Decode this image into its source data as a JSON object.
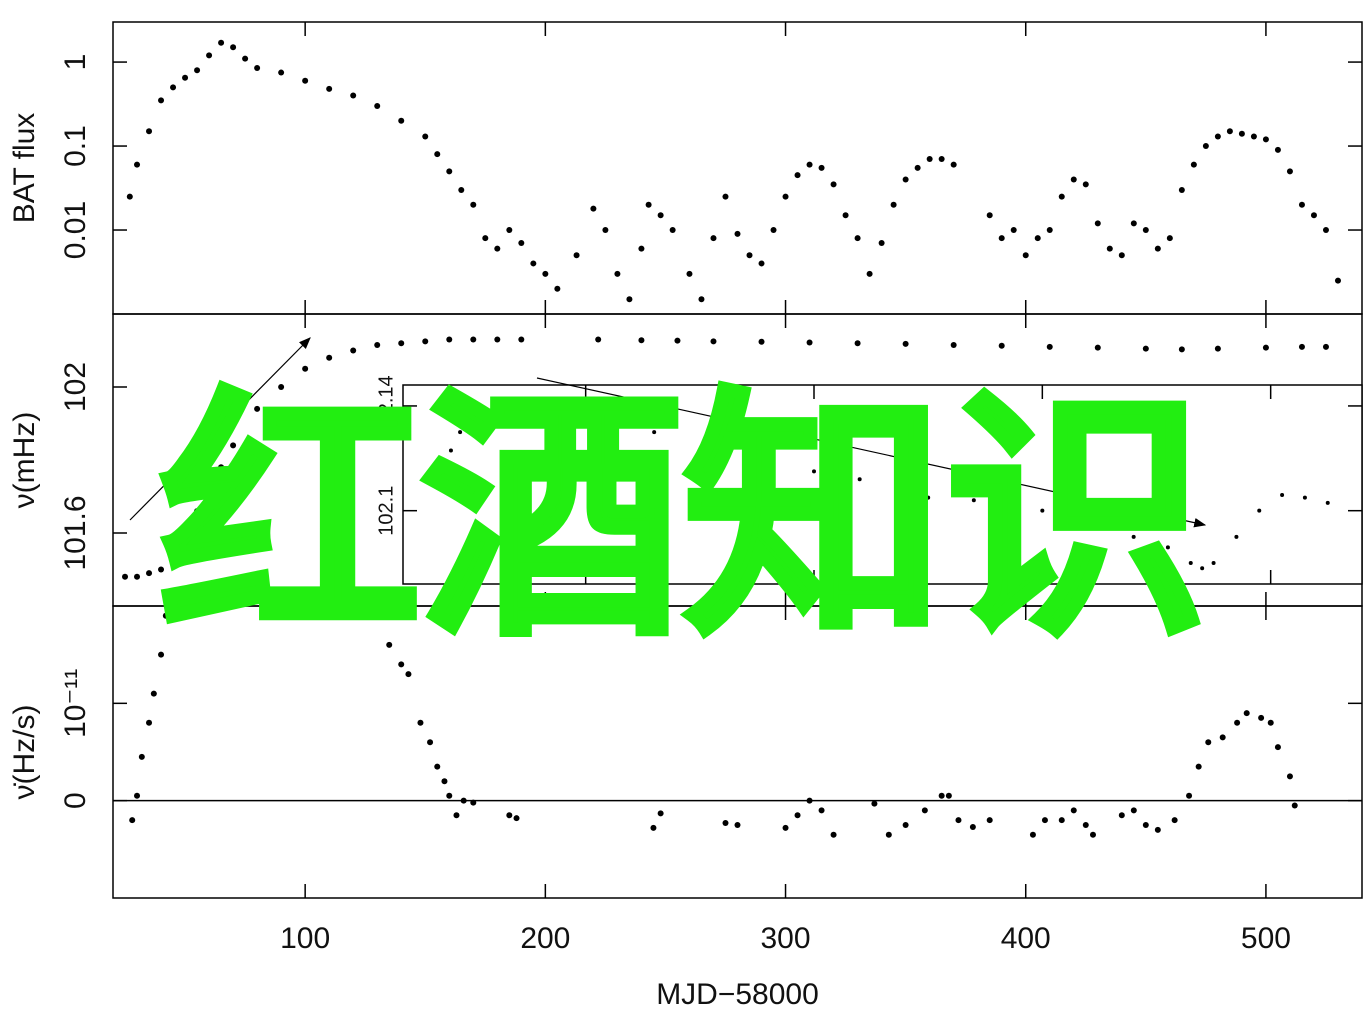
{
  "chart_data": [
    {
      "type": "scatter",
      "ylabel": "BAT flux",
      "ylog": true,
      "color": "#000000",
      "xlim": [
        20,
        540
      ],
      "ylim": [
        0.001,
        3
      ],
      "yticks": [
        0.01,
        0.1,
        1
      ],
      "x": [
        27,
        30,
        35,
        40,
        45,
        50,
        55,
        60,
        65,
        70,
        75,
        80,
        90,
        100,
        110,
        120,
        130,
        140,
        150,
        155,
        160,
        165,
        170,
        175,
        180,
        185,
        190,
        195,
        200,
        205,
        213,
        220,
        225,
        230,
        235,
        240,
        243,
        248,
        253,
        260,
        265,
        270,
        275,
        280,
        285,
        290,
        295,
        300,
        305,
        310,
        315,
        320,
        325,
        330,
        335,
        340,
        345,
        350,
        355,
        360,
        365,
        370,
        385,
        390,
        395,
        400,
        405,
        410,
        415,
        420,
        425,
        430,
        435,
        440,
        445,
        450,
        455,
        460,
        465,
        470,
        475,
        480,
        485,
        490,
        495,
        500,
        505,
        510,
        515,
        520,
        525,
        530
      ],
      "values": [
        0.025,
        0.06,
        0.15,
        0.35,
        0.5,
        0.65,
        0.8,
        1.2,
        1.7,
        1.5,
        1.1,
        0.85,
        0.75,
        0.6,
        0.48,
        0.4,
        0.3,
        0.2,
        0.13,
        0.08,
        0.05,
        0.03,
        0.02,
        0.008,
        0.006,
        0.01,
        0.007,
        0.004,
        0.003,
        0.002,
        0.005,
        0.018,
        0.01,
        0.003,
        0.0015,
        0.006,
        0.02,
        0.015,
        0.01,
        0.003,
        0.0015,
        0.008,
        0.025,
        0.009,
        0.005,
        0.004,
        0.01,
        0.025,
        0.045,
        0.06,
        0.055,
        0.035,
        0.015,
        0.008,
        0.003,
        0.007,
        0.02,
        0.04,
        0.055,
        0.07,
        0.07,
        0.06,
        0.015,
        0.008,
        0.01,
        0.005,
        0.008,
        0.01,
        0.025,
        0.04,
        0.035,
        0.012,
        0.006,
        0.005,
        0.012,
        0.01,
        0.006,
        0.008,
        0.03,
        0.06,
        0.1,
        0.13,
        0.15,
        0.14,
        0.13,
        0.12,
        0.09,
        0.05,
        0.02,
        0.015,
        0.01,
        0.0025
      ]
    },
    {
      "type": "scatter",
      "ylabel": "ν(mHz)",
      "color": "#000000",
      "xlim": [
        20,
        540
      ],
      "ylim": [
        101.4,
        102.2
      ],
      "yticks": [
        101.6,
        102
      ],
      "x": [
        25,
        30,
        35,
        40,
        45,
        50,
        55,
        60,
        65,
        70,
        80,
        90,
        100,
        110,
        120,
        130,
        140,
        150,
        160,
        170,
        180,
        190,
        222,
        240,
        255,
        270,
        290,
        310,
        330,
        350,
        370,
        390,
        410,
        430,
        450,
        465,
        480,
        500,
        515,
        525
      ],
      "values": [
        101.48,
        101.48,
        101.49,
        101.5,
        101.55,
        101.6,
        101.66,
        101.72,
        101.78,
        101.84,
        101.94,
        102.0,
        102.05,
        102.08,
        102.1,
        102.115,
        102.12,
        102.125,
        102.13,
        102.13,
        102.13,
        102.13,
        102.13,
        102.128,
        102.127,
        102.125,
        102.124,
        102.122,
        102.12,
        102.118,
        102.115,
        102.113,
        102.11,
        102.108,
        102.105,
        102.103,
        102.105,
        102.108,
        102.11,
        102.11
      ]
    },
    {
      "type": "scatter",
      "ylabel": "ν̇(Hz/s)",
      "xlabel": "MJD−58000",
      "zero_line": true,
      "color": "#000000",
      "xlim": [
        20,
        540
      ],
      "xticks": [
        100,
        200,
        300,
        400,
        500
      ],
      "ylim": [
        -1e-11,
        2e-11
      ],
      "yticks": [
        0,
        {
          "value": 1e-11,
          "label": "10⁻¹¹"
        }
      ],
      "x": [
        28,
        30,
        32,
        35,
        37,
        40,
        42,
        130,
        135,
        140,
        143,
        148,
        152,
        155,
        158,
        160,
        163,
        166,
        170,
        185,
        188,
        245,
        248,
        275,
        280,
        300,
        305,
        310,
        315,
        320,
        337,
        343,
        350,
        358,
        365,
        368,
        372,
        378,
        385,
        403,
        408,
        415,
        420,
        425,
        428,
        440,
        445,
        450,
        455,
        462,
        468,
        472,
        476,
        482,
        488,
        492,
        498,
        502,
        505,
        510,
        512
      ],
      "values": [
        -2e-12,
        5e-13,
        4.5e-12,
        8e-12,
        1.1e-11,
        1.5e-11,
        1.9e-11,
        2e-11,
        1.6e-11,
        1.4e-11,
        1.3e-11,
        8e-12,
        6e-12,
        3.5e-12,
        2e-12,
        5e-13,
        -1.5e-12,
        0,
        -2e-13,
        -1.5e-12,
        -1.8e-12,
        -2.8e-12,
        -1.3e-12,
        -2.3e-12,
        -2.5e-12,
        -2.8e-12,
        -1.5e-12,
        0,
        -1e-12,
        -3.5e-12,
        -3e-13,
        -3.5e-12,
        -2.5e-12,
        -1e-12,
        5e-13,
        5e-13,
        -2e-12,
        -2.7e-12,
        -2e-12,
        -3.5e-12,
        -2e-12,
        -2e-12,
        -1e-12,
        -2.5e-12,
        -3.5e-12,
        -1.5e-12,
        -1e-12,
        -2.5e-12,
        -3e-12,
        -2e-12,
        5e-13,
        3.5e-12,
        6e-12,
        6.5e-12,
        8e-12,
        9e-12,
        8.5e-12,
        8e-12,
        5.5e-12,
        2.5e-12,
        -5e-13
      ]
    },
    {
      "type": "scatter",
      "color": "#000000",
      "xlim": [
        120,
        540
      ],
      "ylim": [
        102.072,
        102.148
      ],
      "yticks": [
        102.1,
        102.14
      ],
      "x": [
        141,
        145,
        150,
        160,
        170,
        180,
        190,
        195,
        210,
        230,
        260,
        280,
        300,
        320,
        340,
        350,
        370,
        385,
        400,
        420,
        440,
        455,
        465,
        470,
        475,
        485,
        495,
        505,
        515,
        525
      ],
      "values": [
        102.123,
        102.13,
        102.136,
        102.139,
        102.139,
        102.138,
        102.136,
        102.135,
        102.133,
        102.13,
        102.122,
        102.118,
        102.115,
        102.112,
        102.108,
        102.105,
        102.104,
        102.102,
        102.1,
        102.095,
        102.09,
        102.086,
        102.08,
        102.078,
        102.08,
        102.09,
        102.1,
        102.106,
        102.105,
        102.103
      ]
    }
  ],
  "watermark": "红酒知识"
}
